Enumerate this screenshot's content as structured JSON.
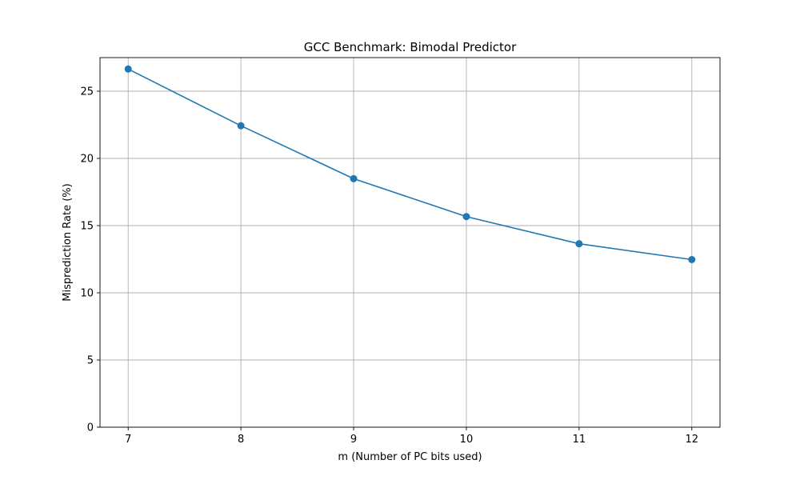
{
  "chart_data": {
    "type": "line",
    "title": "GCC Benchmark: Bimodal Predictor",
    "xlabel": "m (Number of PC bits used)",
    "ylabel": "Misprediction Rate (%)",
    "x": [
      7,
      8,
      9,
      10,
      11,
      12
    ],
    "series": [
      {
        "values": [
          26.65,
          22.43,
          18.49,
          15.67,
          13.65,
          12.47
        ],
        "color": "#1f77b4",
        "marker": "circle"
      }
    ],
    "x_ticks": [
      "7",
      "8",
      "9",
      "10",
      "11",
      "12"
    ],
    "y_ticks": [
      "0",
      "5",
      "10",
      "15",
      "20",
      "25"
    ],
    "xlim": [
      6.75,
      12.25
    ],
    "ylim": [
      0,
      27.5
    ],
    "grid": true,
    "legend": "none"
  }
}
